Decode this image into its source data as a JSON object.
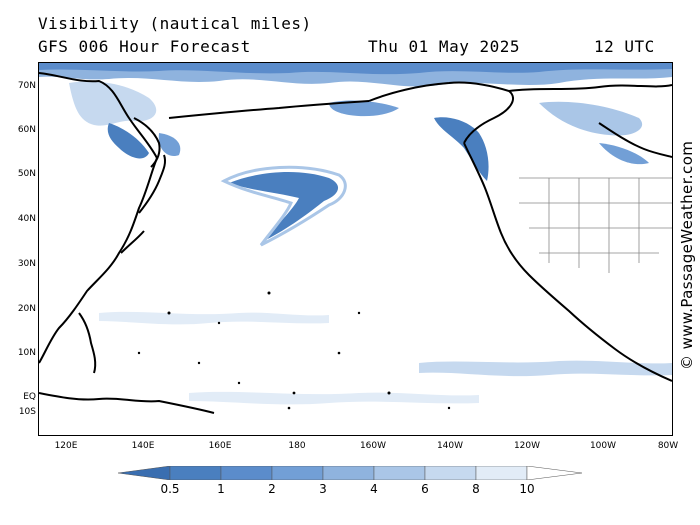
{
  "header": {
    "title": "Visibility (nautical miles)",
    "subtitle": "GFS 006 Hour Forecast",
    "date": "Thu 01 May 2025",
    "time": "12 UTC"
  },
  "watermark": "© www.PassageWeather.com",
  "map": {
    "region": "North Pacific",
    "lat_labels": [
      "70N",
      "60N",
      "50N",
      "40N",
      "30N",
      "20N",
      "10N",
      "EQ",
      "10S"
    ],
    "lon_labels": [
      "120E",
      "140E",
      "160E",
      "180",
      "160W",
      "140W",
      "120W",
      "100W",
      "80W"
    ]
  },
  "legend": {
    "labels": [
      "0.5",
      "1",
      "2",
      "3",
      "4",
      "6",
      "8",
      "10"
    ],
    "colors": [
      "#4a7fbf",
      "#5b8ccb",
      "#729fd6",
      "#8fb3de",
      "#aac6e7",
      "#c6d9ef",
      "#e2ecf7",
      "#ffffff"
    ],
    "low_arrow_color": "#3a6eb0",
    "high_arrow_color": "#ffffff"
  }
}
